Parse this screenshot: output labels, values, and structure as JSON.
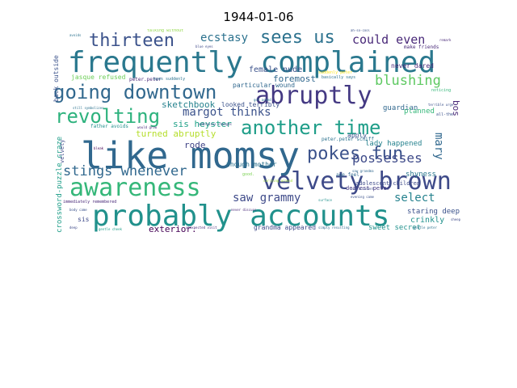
{
  "title": "1944-01-06",
  "words": [
    {
      "text": "like momsy",
      "color": "#31688e"
    },
    {
      "text": "frequently complained",
      "color": "#2a788e"
    },
    {
      "text": "probably accounts",
      "color": "#21918c"
    },
    {
      "text": "velvety brown",
      "color": "#3e4a89"
    },
    {
      "text": "awareness",
      "color": "#35b779"
    },
    {
      "text": "abruptly",
      "color": "#443983"
    },
    {
      "text": "going downtown",
      "color": "#31688e"
    },
    {
      "text": "another time",
      "color": "#1f9e89"
    },
    {
      "text": "revolting",
      "color": "#2db27d"
    },
    {
      "text": "thirteen",
      "color": "#3b528b"
    },
    {
      "text": "sees us",
      "color": "#2c728e"
    },
    {
      "text": "pokes fun",
      "color": "#3b528b"
    },
    {
      "text": "stings whenever",
      "color": "#31688e"
    },
    {
      "text": "blushing",
      "color": "#5ec962"
    },
    {
      "text": "possesses",
      "color": "#3e4a89"
    },
    {
      "text": "could even",
      "color": "#482878"
    },
    {
      "text": "ecstasy",
      "color": "#2c728e"
    },
    {
      "text": "margot thinks",
      "color": "#3b528b"
    },
    {
      "text": "saw grammy",
      "color": "#3e4a89"
    },
    {
      "text": "select",
      "color": "#26828e"
    },
    {
      "text": "foremost",
      "color": "#31688e"
    },
    {
      "text": "female nude",
      "color": "#3b528b"
    },
    {
      "text": "sketchbook",
      "color": "#26828e"
    },
    {
      "text": "sis heyster",
      "color": "#1fa187"
    },
    {
      "text": "turned abruptly",
      "color": "#b5de2b"
    },
    {
      "text": "rode",
      "color": "#414487"
    },
    {
      "text": "exterior.",
      "color": "#440154"
    },
    {
      "text": "crinkly",
      "color": "#21918c"
    },
    {
      "text": "mary",
      "color": "#31688e"
    },
    {
      "text": "bos",
      "color": "#482878"
    },
    {
      "text": "lady happened",
      "color": "#26828e"
    },
    {
      "text": "guardian",
      "color": "#31688e"
    },
    {
      "text": "planned",
      "color": "#35b779"
    },
    {
      "text": "shyness",
      "color": "#2a788e"
    },
    {
      "text": "staring deep",
      "color": "#3b528b"
    },
    {
      "text": "sweet secret",
      "color": "#21918c"
    },
    {
      "text": "grandma appeared",
      "color": "#3e4a89"
    },
    {
      "text": "crossword-puzzle craze",
      "color": "#1f9e89"
    },
    {
      "text": "though mother",
      "color": "#2c728e"
    },
    {
      "text": "adolescent children",
      "color": "#3e4a89"
    },
    {
      "text": "jasque refused",
      "color": "#6ece58"
    },
    {
      "text": "never dared",
      "color": "#482878"
    },
    {
      "text": "particular wound",
      "color": "#31688e"
    },
    {
      "text": "looked terribly",
      "color": "#3b528b"
    },
    {
      "text": "make friends",
      "color": "#482878"
    },
    {
      "text": "peter.peter schiff",
      "color": "#2c728e"
    },
    {
      "text": "dearest peter",
      "color": "#443983"
    },
    {
      "text": "apply",
      "color": "#3b528b"
    },
    {
      "text": "age feel",
      "color": "#31688e"
    },
    {
      "text": "back outside",
      "color": "#3b528b"
    },
    {
      "text": "velvety",
      "color": "#3e4a89"
    },
    {
      "text": "sis",
      "color": "#3e4a89"
    },
    {
      "text": "immediately remembered",
      "color": "#482878"
    },
    {
      "text": "father avoids",
      "color": "#21918c"
    },
    {
      "text": "peter.peter",
      "color": "#482878"
    },
    {
      "text": "eyes suddenly",
      "color": "#2c728e"
    },
    {
      "text": "talking without",
      "color": "#8fd744"
    },
    {
      "text": "basically says",
      "color": "#2c728e"
    },
    {
      "text": "suddenly peter",
      "color": "#fde725"
    },
    {
      "text": "blue eyes",
      "color": "#3e4a89"
    },
    {
      "text": "all-the",
      "color": "#3b528b"
    },
    {
      "text": "still symbolizes",
      "color": "#2c728e"
    },
    {
      "text": "never discuss",
      "color": "#482878"
    },
    {
      "text": "simply resulting",
      "color": "#31688e"
    },
    {
      "text": "gentle cheek",
      "color": "#1f9e89"
    },
    {
      "text": "unexpected visit",
      "color": "#482878"
    },
    {
      "text": "terrible urge",
      "color": "#3b528b"
    },
    {
      "text": "noticing",
      "color": "#35b779"
    },
    {
      "text": "sun accident",
      "color": "#3e4a89"
    },
    {
      "text": "evening came",
      "color": "#3b528b"
    },
    {
      "text": "get asked",
      "color": "#2c728e"
    },
    {
      "text": "gentle peter",
      "color": "#2c728e"
    },
    {
      "text": "addresses changes",
      "color": "#3e4a89"
    },
    {
      "text": "would grow",
      "color": "#482878"
    },
    {
      "text": "bleak",
      "color": "#440154"
    },
    {
      "text": "deep",
      "color": "#3e4a89"
    },
    {
      "text": "body came",
      "color": "#3b528b"
    },
    {
      "text": "good.",
      "color": "#7ad151"
    },
    {
      "text": "saw grandma",
      "color": "#31688e"
    },
    {
      "text": "carrying around",
      "color": "#a0da39"
    },
    {
      "text": "surface",
      "color": "#21918c"
    },
    {
      "text": "ah-so-cool",
      "color": "#3b528b"
    },
    {
      "text": "avoids",
      "color": "#2c728e"
    },
    {
      "text": "remark",
      "color": "#482878"
    },
    {
      "text": "sheep",
      "color": "#3e4a89"
    }
  ]
}
